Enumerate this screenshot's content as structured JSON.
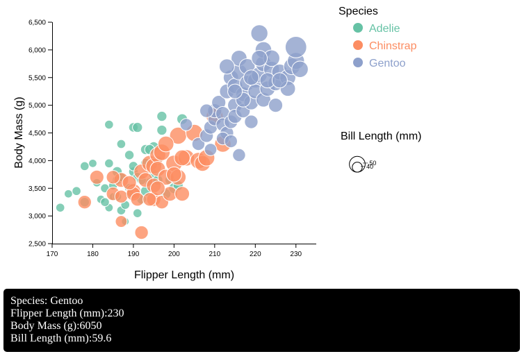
{
  "chart_data": {
    "type": "scatter",
    "xlabel": "Flipper Length (mm)",
    "ylabel": "Body Mass (g)",
    "xlim": [
      170,
      235
    ],
    "ylim": [
      2500,
      6500
    ],
    "x_ticks": [
      170,
      180,
      190,
      200,
      210,
      220,
      230
    ],
    "y_ticks": [
      2500,
      3000,
      3500,
      4000,
      4500,
      5000,
      5500,
      6000,
      6500
    ],
    "y_tick_labels": [
      "2,500",
      "3,000",
      "3,500",
      "4,000",
      "4,500",
      "5,000",
      "5,500",
      "6,000",
      "6,500"
    ],
    "grid": false,
    "legend": {
      "title": "Species",
      "placement": "top-right",
      "entries": [
        "Adelie",
        "Chinstrap",
        "Gentoo"
      ]
    },
    "size_legend": {
      "title": "Bill Length (mm)",
      "values": [
        50,
        40
      ],
      "labels": [
        "50",
        "40"
      ]
    },
    "series": [
      {
        "name": "Adelie",
        "color": "#66c2a5",
        "points": [
          [
            172,
            3150,
            38
          ],
          [
            174,
            3400,
            37
          ],
          [
            176,
            3450,
            38
          ],
          [
            178,
            3250,
            39
          ],
          [
            178,
            3900,
            38
          ],
          [
            180,
            3950,
            37
          ],
          [
            181,
            3600,
            37
          ],
          [
            182,
            3300,
            37
          ],
          [
            183,
            3500,
            38
          ],
          [
            184,
            4650,
            38
          ],
          [
            184,
            3150,
            37
          ],
          [
            185,
            3350,
            36
          ],
          [
            185,
            3550,
            38
          ],
          [
            186,
            3650,
            39
          ],
          [
            186,
            3800,
            40
          ],
          [
            187,
            3100,
            38
          ],
          [
            187,
            3700,
            38
          ],
          [
            187,
            4300,
            38
          ],
          [
            188,
            2900,
            36
          ],
          [
            188,
            3200,
            38
          ],
          [
            189,
            3500,
            39
          ],
          [
            189,
            3400,
            38
          ],
          [
            190,
            3800,
            39
          ],
          [
            190,
            4600,
            39
          ],
          [
            190,
            3900,
            39
          ],
          [
            191,
            3050,
            38
          ],
          [
            191,
            3700,
            39
          ],
          [
            191,
            4600,
            40
          ],
          [
            192,
            3300,
            39
          ],
          [
            193,
            3450,
            40
          ],
          [
            193,
            3950,
            40
          ],
          [
            193,
            4200,
            40
          ],
          [
            194,
            3600,
            39
          ],
          [
            195,
            3750,
            40
          ],
          [
            195,
            4250,
            40
          ],
          [
            196,
            4000,
            39
          ],
          [
            197,
            4550,
            40
          ],
          [
            197,
            4800,
            40
          ],
          [
            198,
            3400,
            40
          ],
          [
            199,
            3650,
            40
          ],
          [
            200,
            3500,
            41
          ],
          [
            201,
            3550,
            40
          ],
          [
            202,
            4750,
            41
          ],
          [
            183,
            3250,
            38
          ],
          [
            184,
            3950,
            38
          ],
          [
            186,
            3350,
            38
          ],
          [
            192,
            3650,
            39
          ],
          [
            194,
            4200,
            40
          ],
          [
            196,
            3650,
            40
          ],
          [
            189,
            4100,
            39
          ]
        ]
      },
      {
        "name": "Chinstrap",
        "color": "#fc8d62",
        "points": [
          [
            178,
            3250,
            46
          ],
          [
            181,
            3700,
            47
          ],
          [
            185,
            3400,
            46
          ],
          [
            187,
            3350,
            45
          ],
          [
            187,
            2900,
            43
          ],
          [
            187,
            3650,
            48
          ],
          [
            190,
            3450,
            48
          ],
          [
            190,
            3400,
            47
          ],
          [
            191,
            3300,
            46
          ],
          [
            192,
            2700,
            46
          ],
          [
            192,
            3800,
            49
          ],
          [
            193,
            3650,
            48
          ],
          [
            194,
            3950,
            50
          ],
          [
            195,
            3550,
            48
          ],
          [
            195,
            3300,
            47
          ],
          [
            195,
            3900,
            50
          ],
          [
            196,
            4100,
            50
          ],
          [
            196,
            3850,
            49
          ],
          [
            197,
            3250,
            46
          ],
          [
            197,
            4150,
            51
          ],
          [
            198,
            3700,
            50
          ],
          [
            199,
            3400,
            48
          ],
          [
            200,
            3950,
            51
          ],
          [
            201,
            4450,
            52
          ],
          [
            201,
            3700,
            50
          ],
          [
            202,
            3400,
            48
          ],
          [
            203,
            4050,
            51
          ],
          [
            205,
            4500,
            52
          ],
          [
            206,
            4000,
            51
          ],
          [
            207,
            3950,
            50
          ],
          [
            208,
            4050,
            51
          ],
          [
            210,
            4800,
            52
          ],
          [
            212,
            4300,
            51
          ],
          [
            185,
            3700,
            46
          ],
          [
            189,
            3600,
            47
          ],
          [
            196,
            3500,
            48
          ],
          [
            198,
            4300,
            50
          ],
          [
            200,
            3750,
            49
          ],
          [
            194,
            3300,
            46
          ],
          [
            202,
            4050,
            50
          ]
        ]
      },
      {
        "name": "Gentoo",
        "color": "#8da0cb",
        "points": [
          [
            203,
            4650,
            44
          ],
          [
            206,
            4300,
            45
          ],
          [
            208,
            4450,
            46
          ],
          [
            209,
            4600,
            46
          ],
          [
            209,
            4200,
            44
          ],
          [
            210,
            4750,
            46
          ],
          [
            210,
            4900,
            47
          ],
          [
            211,
            5050,
            47
          ],
          [
            212,
            4850,
            47
          ],
          [
            212,
            4650,
            46
          ],
          [
            213,
            5250,
            48
          ],
          [
            213,
            4500,
            46
          ],
          [
            214,
            5500,
            49
          ],
          [
            214,
            4700,
            46
          ],
          [
            215,
            5000,
            48
          ],
          [
            215,
            4800,
            47
          ],
          [
            215,
            5350,
            49
          ],
          [
            216,
            5600,
            50
          ],
          [
            216,
            4100,
            45
          ],
          [
            216,
            5850,
            50
          ],
          [
            217,
            5200,
            48
          ],
          [
            217,
            4900,
            47
          ],
          [
            218,
            5400,
            49
          ],
          [
            218,
            5700,
            50
          ],
          [
            219,
            5050,
            48
          ],
          [
            219,
            4700,
            46
          ],
          [
            220,
            5450,
            49
          ],
          [
            220,
            5250,
            48
          ],
          [
            221,
            6300,
            52
          ],
          [
            221,
            5550,
            50
          ],
          [
            222,
            5750,
            50
          ],
          [
            222,
            5100,
            48
          ],
          [
            222,
            6000,
            51
          ],
          [
            223,
            5300,
            49
          ],
          [
            224,
            5650,
            50
          ],
          [
            224,
            5850,
            51
          ],
          [
            225,
            5400,
            49
          ],
          [
            225,
            5000,
            47
          ],
          [
            226,
            5600,
            50
          ],
          [
            228,
            5500,
            50
          ],
          [
            228,
            5300,
            49
          ],
          [
            229,
            5700,
            51
          ],
          [
            230,
            5800,
            52
          ],
          [
            230,
            6050,
            59.6
          ],
          [
            231,
            5650,
            51
          ],
          [
            212,
            4400,
            45
          ],
          [
            214,
            4350,
            45
          ],
          [
            217,
            5100,
            48
          ],
          [
            219,
            5500,
            49
          ],
          [
            221,
            5850,
            50
          ],
          [
            223,
            5450,
            49
          ],
          [
            226,
            5450,
            49
          ],
          [
            208,
            4900,
            46
          ],
          [
            213,
            5700,
            49
          ],
          [
            215,
            5250,
            48
          ]
        ]
      }
    ]
  },
  "tooltip": {
    "line1": "Species: Gentoo",
    "line2": "Flipper Length (mm):230",
    "line3": "Body Mass (g):6050",
    "line4": "Bill Length (mm):59.6"
  }
}
